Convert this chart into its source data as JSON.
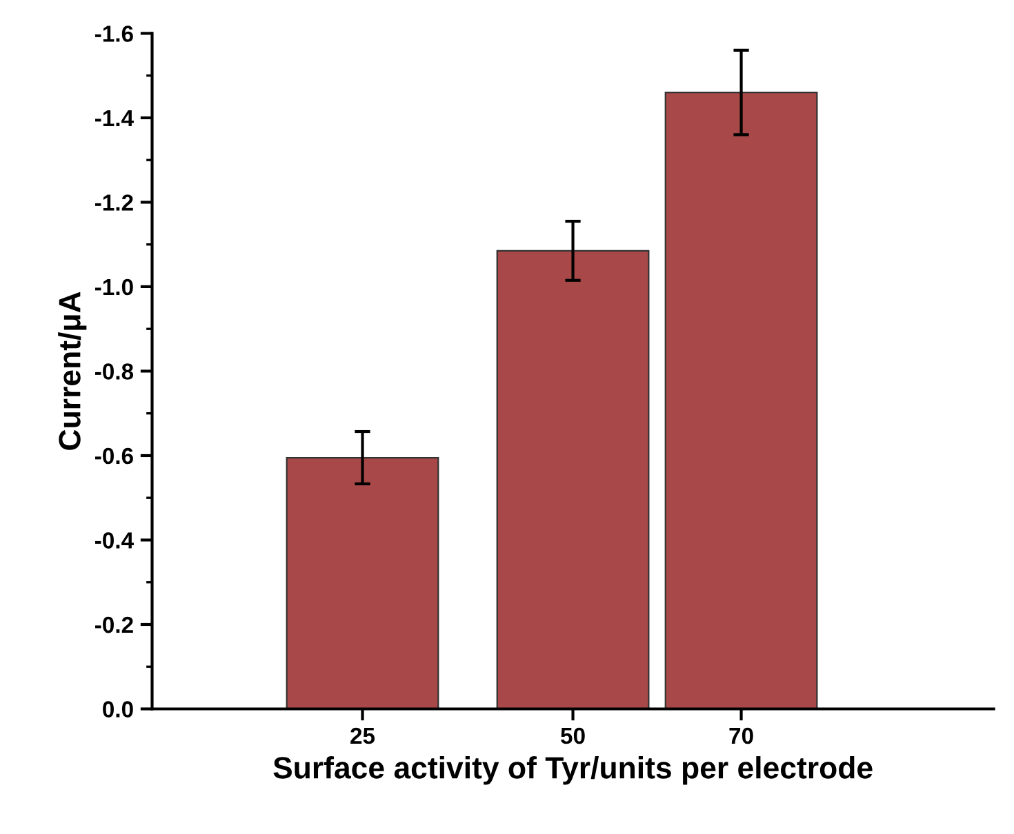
{
  "chart_data": {
    "type": "bar",
    "xlabel": "Surface activity of Tyr/units per electrode",
    "ylabel": "Current/μA",
    "x": [
      25,
      50,
      70
    ],
    "values": [
      -0.595,
      -1.085,
      -1.46
    ],
    "errors": [
      0.062,
      0.07,
      0.1
    ],
    "color": "#a84848",
    "xlim": [
      0,
      100
    ],
    "xticks": [
      25,
      50,
      70
    ],
    "ylim": [
      0,
      -1.6
    ],
    "yticks": [
      {
        "value": 0,
        "label": "0.0"
      },
      -0.2,
      -0.4,
      -0.6,
      -0.8,
      {
        "value": -1,
        "label": "-1.0"
      },
      -1.2,
      -1.4,
      -1.6
    ],
    "grid": false,
    "legend": false
  }
}
